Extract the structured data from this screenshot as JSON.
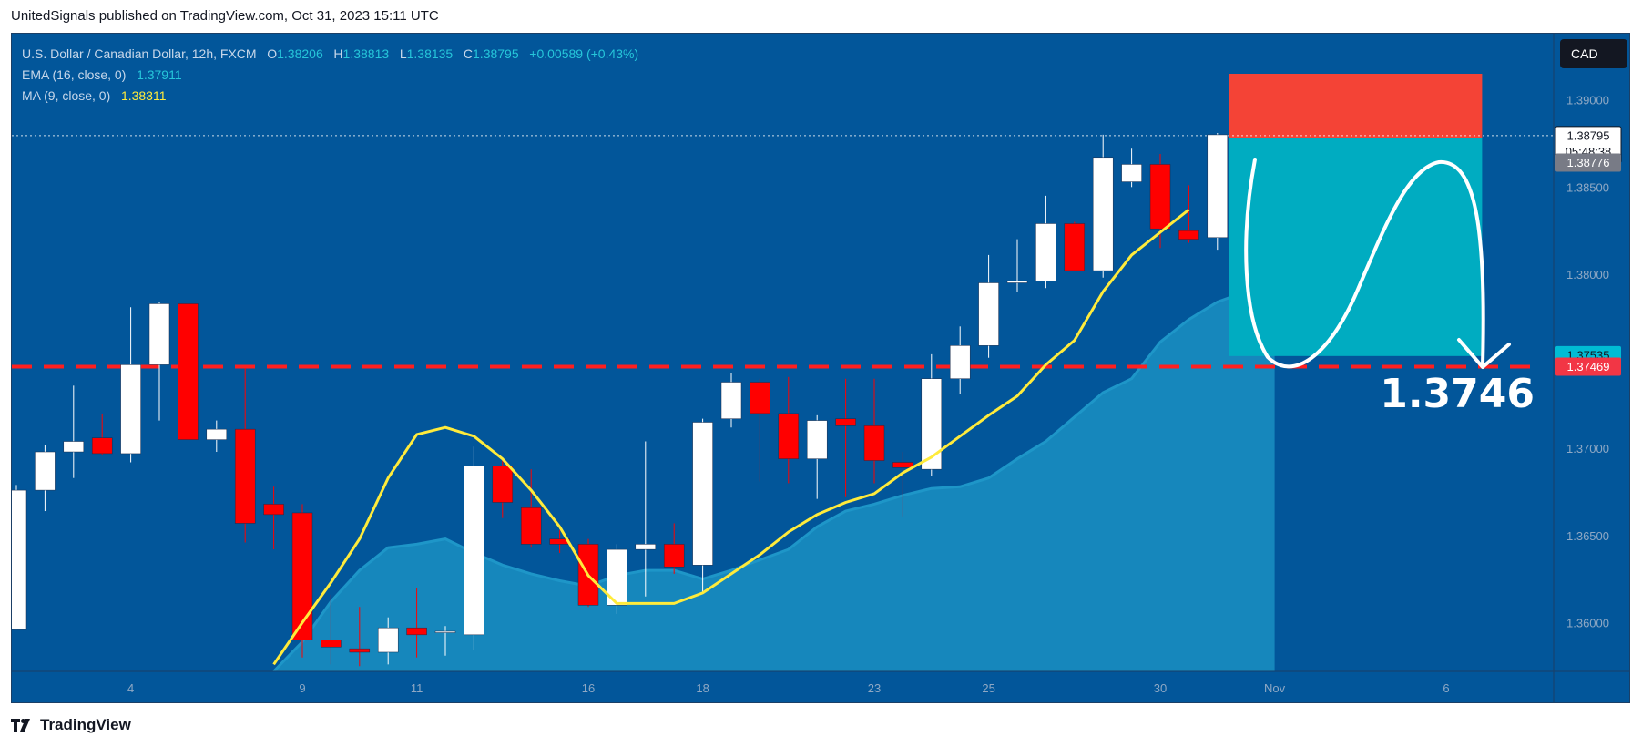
{
  "header": {
    "published_text": "UnitedSignals published on TradingView.com, Oct 31, 2023 15:11 UTC"
  },
  "legend": {
    "symbol": "U.S. Dollar / Canadian Dollar, 12h, FXCM",
    "open_label": "O",
    "open_value": "1.38206",
    "high_label": "H",
    "high_value": "1.38813",
    "low_label": "L",
    "low_value": "1.38135",
    "close_label": "C",
    "close_value": "1.38795",
    "change_value": "+0.00589 (+0.43%)",
    "ema_label": "EMA (16, close, 0)",
    "ema_value": "1.37911",
    "ma_label": "MA (9, close, 0)",
    "ma_value": "1.38311"
  },
  "currency_button": "CAD",
  "footer": {
    "brand": "TradingView"
  },
  "colors": {
    "background": "#02569a",
    "bull": "#ffffff",
    "bear": "#ff0000",
    "ma": "#ffeb3b",
    "ema_line": "#1e96c8",
    "ema_fill": "#1a8fc2",
    "stop": "#f44336",
    "target": "#00acc1",
    "support": "#ff1f1f"
  },
  "chart_data": {
    "type": "candlestick",
    "title": "U.S. Dollar / Canadian Dollar, 12h, FXCM",
    "xlabel": "",
    "ylabel": "",
    "ylim": [
      1.3572,
      1.3938
    ],
    "y_ticks": [
      {
        "value": 1.36,
        "label": "1.36000"
      },
      {
        "value": 1.365,
        "label": "1.36500"
      },
      {
        "value": 1.37,
        "label": "1.37000"
      },
      {
        "value": 1.38,
        "label": "1.38000"
      },
      {
        "value": 1.385,
        "label": "1.38500"
      },
      {
        "value": 1.39,
        "label": "1.39000"
      }
    ],
    "x_ticks": [
      {
        "index": 4,
        "label": "4"
      },
      {
        "index": 10,
        "label": "9"
      },
      {
        "index": 14,
        "label": "11"
      },
      {
        "index": 20,
        "label": "16"
      },
      {
        "index": 24,
        "label": "18"
      },
      {
        "index": 30,
        "label": "23"
      },
      {
        "index": 34,
        "label": "25"
      },
      {
        "index": 40,
        "label": "30"
      },
      {
        "index": 44,
        "label": "Nov"
      },
      {
        "index": 50,
        "label": "6"
      }
    ],
    "candles": [
      {
        "o": 1.3596,
        "h": 1.3679,
        "l": 1.3596,
        "c": 1.3676
      },
      {
        "o": 1.3676,
        "h": 1.3702,
        "l": 1.3664,
        "c": 1.3698
      },
      {
        "o": 1.3698,
        "h": 1.3736,
        "l": 1.3683,
        "c": 1.3704
      },
      {
        "o": 1.3706,
        "h": 1.372,
        "l": 1.3696,
        "c": 1.3697
      },
      {
        "o": 1.3697,
        "h": 1.3781,
        "l": 1.3692,
        "c": 1.3748
      },
      {
        "o": 1.3748,
        "h": 1.3784,
        "l": 1.3716,
        "c": 1.3783
      },
      {
        "o": 1.3783,
        "h": 1.3783,
        "l": 1.3705,
        "c": 1.3705
      },
      {
        "o": 1.3705,
        "h": 1.3716,
        "l": 1.3698,
        "c": 1.3711
      },
      {
        "o": 1.3711,
        "h": 1.3746,
        "l": 1.3646,
        "c": 1.3657
      },
      {
        "o": 1.3668,
        "h": 1.3678,
        "l": 1.3642,
        "c": 1.3662
      },
      {
        "o": 1.3663,
        "h": 1.3668,
        "l": 1.358,
        "c": 1.359
      },
      {
        "o": 1.359,
        "h": 1.3616,
        "l": 1.3576,
        "c": 1.3586
      },
      {
        "o": 1.3585,
        "h": 1.3609,
        "l": 1.3575,
        "c": 1.3583
      },
      {
        "o": 1.3583,
        "h": 1.3603,
        "l": 1.3576,
        "c": 1.3597
      },
      {
        "o": 1.3597,
        "h": 1.362,
        "l": 1.358,
        "c": 1.3593
      },
      {
        "o": 1.3595,
        "h": 1.3598,
        "l": 1.3581,
        "c": 1.3595
      },
      {
        "o": 1.3593,
        "h": 1.3701,
        "l": 1.3584,
        "c": 1.369
      },
      {
        "o": 1.369,
        "h": 1.3693,
        "l": 1.366,
        "c": 1.3669
      },
      {
        "o": 1.3666,
        "h": 1.3688,
        "l": 1.3643,
        "c": 1.3645
      },
      {
        "o": 1.3648,
        "h": 1.3653,
        "l": 1.364,
        "c": 1.3645
      },
      {
        "o": 1.3645,
        "h": 1.3648,
        "l": 1.3609,
        "c": 1.361
      },
      {
        "o": 1.361,
        "h": 1.3645,
        "l": 1.3605,
        "c": 1.3642
      },
      {
        "o": 1.3642,
        "h": 1.3704,
        "l": 1.3615,
        "c": 1.3645
      },
      {
        "o": 1.3645,
        "h": 1.3657,
        "l": 1.3628,
        "c": 1.3632
      },
      {
        "o": 1.3633,
        "h": 1.3717,
        "l": 1.3617,
        "c": 1.3715
      },
      {
        "o": 1.3717,
        "h": 1.3743,
        "l": 1.3712,
        "c": 1.3738
      },
      {
        "o": 1.3738,
        "h": 1.374,
        "l": 1.3681,
        "c": 1.372
      },
      {
        "o": 1.372,
        "h": 1.3741,
        "l": 1.368,
        "c": 1.3694
      },
      {
        "o": 1.3694,
        "h": 1.3719,
        "l": 1.3671,
        "c": 1.3716
      },
      {
        "o": 1.3717,
        "h": 1.374,
        "l": 1.3672,
        "c": 1.3713
      },
      {
        "o": 1.3713,
        "h": 1.374,
        "l": 1.368,
        "c": 1.3693
      },
      {
        "o": 1.3692,
        "h": 1.3698,
        "l": 1.3661,
        "c": 1.3689
      },
      {
        "o": 1.3688,
        "h": 1.3754,
        "l": 1.3684,
        "c": 1.374
      },
      {
        "o": 1.374,
        "h": 1.377,
        "l": 1.3731,
        "c": 1.3759
      },
      {
        "o": 1.3759,
        "h": 1.3811,
        "l": 1.3752,
        "c": 1.3795
      },
      {
        "o": 1.3795,
        "h": 1.382,
        "l": 1.379,
        "c": 1.3796
      },
      {
        "o": 1.3796,
        "h": 1.3845,
        "l": 1.3792,
        "c": 1.3829
      },
      {
        "o": 1.3829,
        "h": 1.383,
        "l": 1.3802,
        "c": 1.3802
      },
      {
        "o": 1.3802,
        "h": 1.388,
        "l": 1.3798,
        "c": 1.3867
      },
      {
        "o": 1.3853,
        "h": 1.3872,
        "l": 1.385,
        "c": 1.3863
      },
      {
        "o": 1.3863,
        "h": 1.3869,
        "l": 1.3815,
        "c": 1.3826
      },
      {
        "o": 1.3825,
        "h": 1.3851,
        "l": 1.3818,
        "c": 1.382
      },
      {
        "o": 1.3821,
        "h": 1.3881,
        "l": 1.3814,
        "c": 1.388
      }
    ],
    "series": [
      {
        "name": "MA (9, close, 0)",
        "values": [
          null,
          null,
          null,
          null,
          null,
          null,
          null,
          null,
          null,
          1.3576,
          1.36,
          1.3623,
          1.3648,
          1.3683,
          1.3708,
          1.3712,
          1.3707,
          1.3694,
          1.3676,
          1.3655,
          1.3627,
          1.3611,
          1.3611,
          1.3611,
          1.3617,
          1.3628,
          1.3639,
          1.3652,
          1.3662,
          1.3669,
          1.3674,
          1.3686,
          1.3695,
          1.3707,
          1.3719,
          1.373,
          1.3748,
          1.3762,
          1.379,
          1.3811,
          1.3824,
          1.3837
        ]
      },
      {
        "name": "EMA (16, close, 0)",
        "values": [
          null,
          null,
          null,
          null,
          null,
          null,
          null,
          null,
          null,
          1.3572,
          1.3589,
          1.3612,
          1.363,
          1.3643,
          1.3645,
          1.3648,
          1.364,
          1.3633,
          1.3628,
          1.3624,
          1.3621,
          1.3627,
          1.363,
          1.363,
          1.3625,
          1.363,
          1.3636,
          1.3642,
          1.3655,
          1.3664,
          1.3668,
          1.3673,
          1.3677,
          1.3678,
          1.3683,
          1.3694,
          1.3704,
          1.3718,
          1.3732,
          1.374,
          1.3761,
          1.3774,
          1.3784,
          1.379,
          1.38
        ]
      }
    ],
    "price_lines": [
      {
        "value": 1.38795,
        "label": "1.38795",
        "sub_label": "05:48:38",
        "type": "current"
      },
      {
        "value": 1.38776,
        "label": "1.38776",
        "type": "previous"
      },
      {
        "value": 1.37535,
        "label": "1.37535",
        "type": "target"
      },
      {
        "value": 1.37469,
        "label": "1.37469",
        "type": "support"
      }
    ],
    "position": {
      "type": "short",
      "entry": 1.3878,
      "stop": 1.3915,
      "target": 1.3753,
      "start_index": 43,
      "end_index": 51
    },
    "annotation": {
      "text": "1.3746",
      "value": 1.3746
    }
  }
}
